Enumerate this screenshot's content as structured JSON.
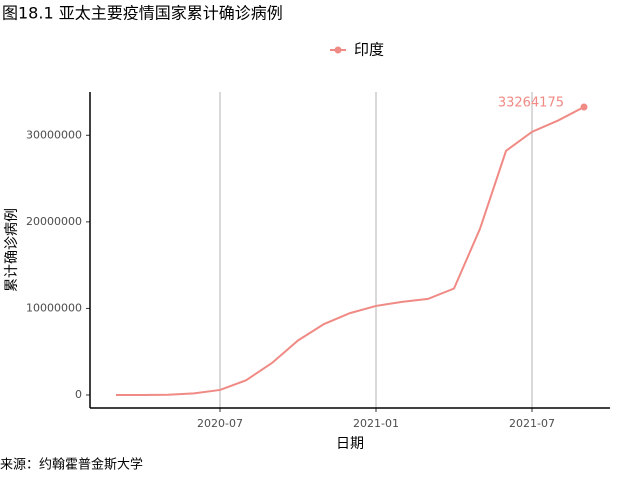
{
  "chart_data": {
    "type": "line",
    "title": "图18.1 亚太主要疫情国家累计确诊病例",
    "x_label": "日期",
    "y_label": "累计确诊病例",
    "caption": "来源：约翰霍普金斯大学",
    "x": [
      "2020-03",
      "2020-04",
      "2020-05",
      "2020-06",
      "2020-07",
      "2020-08",
      "2020-09",
      "2020-10",
      "2020-11",
      "2020-12",
      "2021-01",
      "2021-02",
      "2021-03",
      "2021-04",
      "2021-05",
      "2021-06",
      "2021-07",
      "2021-08",
      "2021-09"
    ],
    "series": [
      {
        "name": "印度",
        "color": "#f08a84",
        "values": [
          3,
          1600,
          35000,
          190000,
          585000,
          1700000,
          3700000,
          6300000,
          8200000,
          9460000,
          10290000,
          10760000,
          11100000,
          12300000,
          19200000,
          28200000,
          30400000,
          31700000,
          33264175
        ]
      }
    ],
    "xlim": [
      "2020-02",
      "2021-10"
    ],
    "xticks": [
      "2020-07",
      "2021-01",
      "2021-07"
    ],
    "ylim": [
      -1500000,
      35000000
    ],
    "yticks": [
      0,
      10000000,
      20000000,
      30000000
    ],
    "grid": "x",
    "legend": "top"
  }
}
